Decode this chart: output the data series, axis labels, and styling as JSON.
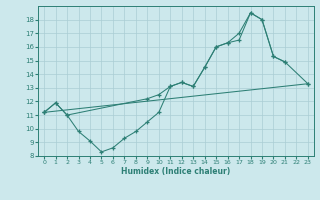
{
  "color": "#2d7f75",
  "bg_color": "#cce8ec",
  "grid_color": "#aacdd4",
  "xlabel": "Humidex (Indice chaleur)",
  "ylim": [
    8,
    19
  ],
  "xlim": [
    -0.5,
    23.5
  ],
  "yticks": [
    8,
    9,
    10,
    11,
    12,
    13,
    14,
    15,
    16,
    17,
    18
  ],
  "xticks": [
    0,
    1,
    2,
    3,
    4,
    5,
    6,
    7,
    8,
    9,
    10,
    11,
    12,
    13,
    14,
    15,
    16,
    17,
    18,
    19,
    20,
    21,
    22,
    23
  ],
  "curve1_x": [
    0,
    1,
    2,
    3,
    4,
    5,
    6,
    7,
    8,
    9,
    10,
    11,
    12,
    13,
    14,
    15,
    16,
    17,
    18,
    19,
    20,
    21
  ],
  "curve1_y": [
    11.2,
    11.9,
    11.0,
    9.8,
    9.1,
    8.3,
    8.6,
    9.3,
    9.8,
    10.5,
    11.2,
    13.1,
    13.4,
    13.1,
    14.5,
    16.0,
    16.3,
    17.0,
    18.5,
    18.0,
    15.3,
    14.9
  ],
  "curve2_x": [
    0,
    1,
    2,
    9,
    10,
    11,
    12,
    13,
    14,
    15,
    16,
    17,
    18,
    19,
    20,
    21,
    23
  ],
  "curve2_y": [
    11.2,
    11.9,
    11.0,
    12.2,
    12.5,
    13.1,
    13.4,
    13.1,
    14.5,
    16.0,
    16.3,
    16.5,
    18.5,
    18.0,
    15.3,
    14.9,
    13.3
  ],
  "curve3_x": [
    0,
    23
  ],
  "curve3_y": [
    11.2,
    13.3
  ]
}
